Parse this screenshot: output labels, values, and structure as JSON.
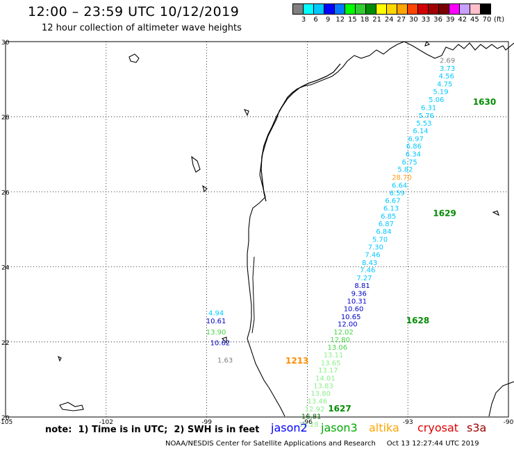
{
  "header": {
    "title": "12:00 – 23:59 UTC 10/12/2019",
    "subtitle": "12 hour collection of altimeter wave heights"
  },
  "scale": {
    "colors": [
      "#808080",
      "#00ffff",
      "#00c8ff",
      "#0000ff",
      "#0078ff",
      "#00ff00",
      "#32cd32",
      "#008c00",
      "#ffff00",
      "#ffd700",
      "#ffa500",
      "#ff4500",
      "#d20000",
      "#a00000",
      "#780000",
      "#ff00ff",
      "#c8a0ff",
      "#ffc0cb",
      "#000000"
    ],
    "ticks": [
      "3",
      "6",
      "9",
      "12",
      "15",
      "18",
      "21",
      "24",
      "27",
      "30",
      "33",
      "36",
      "39",
      "42",
      "45",
      "70",
      "(ft)"
    ]
  },
  "map": {
    "lat_labels": [
      "30",
      "28",
      "26",
      "24",
      "22",
      "20"
    ],
    "lon_labels": [
      "-105",
      "-102",
      "-99",
      "-96",
      "-93",
      "-90"
    ],
    "extent": {
      "lon": [
        -105,
        -90
      ],
      "lat": [
        20,
        30
      ]
    }
  },
  "pass_labels": [
    {
      "text": "1630",
      "color": "#008c00",
      "lon": -91.06,
      "lat": 28.32
    },
    {
      "text": "1629",
      "color": "#008c00",
      "lon": -92.25,
      "lat": 25.35
    },
    {
      "text": "1628",
      "color": "#008c00",
      "lon": -93.05,
      "lat": 22.5
    },
    {
      "text": "1627",
      "color": "#008c00",
      "lon": -95.38,
      "lat": 20.15
    },
    {
      "text": "1213",
      "color": "#ff8c00",
      "lon": -96.65,
      "lat": 21.42
    }
  ],
  "track_values": [
    {
      "text": "2.69",
      "color": "#808080",
      "lon": -91.82,
      "lat": 29.44
    },
    {
      "text": "3.73",
      "color": "#00c8ff",
      "lon": -91.82,
      "lat": 29.22
    },
    {
      "text": "4.56",
      "color": "#00c8ff",
      "lon": -91.85,
      "lat": 29.02
    },
    {
      "text": "4.75",
      "color": "#00c8ff",
      "lon": -91.9,
      "lat": 28.81
    },
    {
      "text": "5.19",
      "color": "#00c8ff",
      "lon": -92.02,
      "lat": 28.6
    },
    {
      "text": "5.06",
      "color": "#00c8ff",
      "lon": -92.15,
      "lat": 28.39
    },
    {
      "text": "6.31",
      "color": "#00c8ff",
      "lon": -92.38,
      "lat": 28.18
    },
    {
      "text": "5.76",
      "color": "#00c8ff",
      "lon": -92.45,
      "lat": 27.97
    },
    {
      "text": "5.53",
      "color": "#00c8ff",
      "lon": -92.52,
      "lat": 27.76
    },
    {
      "text": "6.14",
      "color": "#00c8ff",
      "lon": -92.62,
      "lat": 27.56
    },
    {
      "text": "6.97",
      "color": "#00c8ff",
      "lon": -92.76,
      "lat": 27.35
    },
    {
      "text": "6.86",
      "color": "#00c8ff",
      "lon": -92.82,
      "lat": 27.15
    },
    {
      "text": "6.34",
      "color": "#00c8ff",
      "lon": -92.84,
      "lat": 26.94
    },
    {
      "text": "6.75",
      "color": "#00c8ff",
      "lon": -92.95,
      "lat": 26.73
    },
    {
      "text": "5.82",
      "color": "#00c8ff",
      "lon": -93.08,
      "lat": 26.53
    },
    {
      "text": "28.70",
      "color": "#ff9c1a",
      "lon": -93.18,
      "lat": 26.32
    },
    {
      "text": "6.64",
      "color": "#00c8ff",
      "lon": -93.25,
      "lat": 26.11
    },
    {
      "text": "6.59",
      "color": "#00c8ff",
      "lon": -93.32,
      "lat": 25.91
    },
    {
      "text": "6.67",
      "color": "#00c8ff",
      "lon": -93.45,
      "lat": 25.7
    },
    {
      "text": "6.13",
      "color": "#00c8ff",
      "lon": -93.5,
      "lat": 25.5
    },
    {
      "text": "6.85",
      "color": "#00c8ff",
      "lon": -93.58,
      "lat": 25.29
    },
    {
      "text": "6.87",
      "color": "#00c8ff",
      "lon": -93.65,
      "lat": 25.08
    },
    {
      "text": "6.84",
      "color": "#00c8ff",
      "lon": -93.72,
      "lat": 24.88
    },
    {
      "text": "5.70",
      "color": "#00c8ff",
      "lon": -93.83,
      "lat": 24.67
    },
    {
      "text": "7.30",
      "color": "#00c8ff",
      "lon": -93.96,
      "lat": 24.46
    },
    {
      "text": "7.46",
      "color": "#00c8ff",
      "lon": -94.05,
      "lat": 24.26
    },
    {
      "text": "8.43",
      "color": "#00c8ff",
      "lon": -94.14,
      "lat": 24.05
    },
    {
      "text": "7.46",
      "color": "#00c8ff",
      "lon": -94.2,
      "lat": 23.85
    },
    {
      "text": "7.27",
      "color": "#00c8ff",
      "lon": -94.3,
      "lat": 23.64
    },
    {
      "text": "8.81",
      "color": "#0000c8",
      "lon": -94.36,
      "lat": 23.44
    },
    {
      "text": "9.36",
      "color": "#0000c8",
      "lon": -94.46,
      "lat": 23.23
    },
    {
      "text": "10.31",
      "color": "#0000c8",
      "lon": -94.52,
      "lat": 23.02
    },
    {
      "text": "10.60",
      "color": "#0000c8",
      "lon": -94.62,
      "lat": 22.82
    },
    {
      "text": "10.65",
      "color": "#0000c8",
      "lon": -94.7,
      "lat": 22.61
    },
    {
      "text": "12.00",
      "color": "#0000c8",
      "lon": -94.8,
      "lat": 22.41
    },
    {
      "text": "12.02",
      "color": "#46d246",
      "lon": -94.92,
      "lat": 22.2
    },
    {
      "text": "12.80",
      "color": "#46d246",
      "lon": -95.02,
      "lat": 22.0
    },
    {
      "text": "13.06",
      "color": "#46d246",
      "lon": -95.1,
      "lat": 21.79
    },
    {
      "text": "13.11",
      "color": "#8ced8c",
      "lon": -95.22,
      "lat": 21.59
    },
    {
      "text": "13.65",
      "color": "#8ced8c",
      "lon": -95.3,
      "lat": 21.38
    },
    {
      "text": "13.17",
      "color": "#8ced8c",
      "lon": -95.38,
      "lat": 21.18
    },
    {
      "text": "14.01",
      "color": "#8ced8c",
      "lon": -95.46,
      "lat": 20.97
    },
    {
      "text": "13.83",
      "color": "#8ced8c",
      "lon": -95.52,
      "lat": 20.77
    },
    {
      "text": "13.80",
      "color": "#8ced8c",
      "lon": -95.6,
      "lat": 20.56
    },
    {
      "text": "13.46",
      "color": "#8ced8c",
      "lon": -95.7,
      "lat": 20.36
    },
    {
      "text": "12.92",
      "color": "#8ced8c",
      "lon": -95.78,
      "lat": 20.15
    },
    {
      "text": "16.81",
      "color": "#006400",
      "lon": -95.88,
      "lat": 19.95
    },
    {
      "text": "13.28",
      "color": "#8ced8c",
      "lon": -95.96,
      "lat": 19.74
    },
    {
      "text": "4.94",
      "color": "#00c8ff",
      "lon": -98.72,
      "lat": 22.71
    },
    {
      "text": "10.61",
      "color": "#0000c8",
      "lon": -98.72,
      "lat": 22.5
    },
    {
      "text": "13.90",
      "color": "#46d246",
      "lon": -98.72,
      "lat": 22.2
    },
    {
      "text": "10.62",
      "color": "#0000c8",
      "lon": -98.6,
      "lat": 21.91
    },
    {
      "text": "1.63",
      "color": "#808080",
      "lon": -98.45,
      "lat": 21.45
    }
  ],
  "footer": {
    "note": "note:  1) Time is in UTC;  2) SWH is in feet",
    "satellites": [
      {
        "name": "jason2",
        "color": "#0000ff"
      },
      {
        "name": "jason3",
        "color": "#00aa00"
      },
      {
        "name": "altika",
        "color": "#ffa500"
      },
      {
        "name": "cryosat",
        "color": "#e00000"
      },
      {
        "name": "s3a",
        "color": "#a00000"
      }
    ],
    "credit": "NOAA/NESDIS Center for Satellite Applications and Research     Oct 13 12:27:44 UTC 2019"
  }
}
